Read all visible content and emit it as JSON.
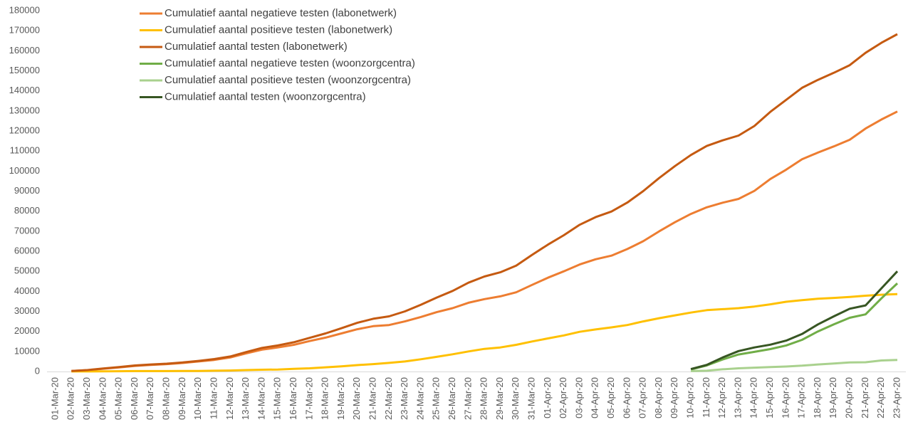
{
  "chart_data": {
    "type": "line",
    "categories": [
      "01-Mar-20",
      "02-Mar-20",
      "03-Mar-20",
      "04-Mar-20",
      "05-Mar-20",
      "06-Mar-20",
      "07-Mar-20",
      "08-Mar-20",
      "09-Mar-20",
      "10-Mar-20",
      "11-Mar-20",
      "12-Mar-20",
      "13-Mar-20",
      "14-Mar-20",
      "15-Mar-20",
      "16-Mar-20",
      "17-Mar-20",
      "18-Mar-20",
      "19-Mar-20",
      "20-Mar-20",
      "21-Mar-20",
      "22-Mar-20",
      "23-Mar-20",
      "24-Mar-20",
      "25-Mar-20",
      "26-Mar-20",
      "27-Mar-20",
      "28-Mar-20",
      "29-Mar-20",
      "30-Mar-20",
      "31-Mar-20",
      "01-Apr-20",
      "02-Apr-20",
      "03-Apr-20",
      "04-Apr-20",
      "05-Apr-20",
      "06-Apr-20",
      "07-Apr-20",
      "08-Apr-20",
      "09-Apr-20",
      "10-Apr-20",
      "11-Apr-20",
      "12-Apr-20",
      "13-Apr-20",
      "14-Apr-20",
      "15-Apr-20",
      "16-Apr-20",
      "17-Apr-20",
      "18-Apr-20",
      "19-Apr-20",
      "20-Apr-20",
      "21-Apr-20",
      "22-Apr-20",
      "23-Apr-20"
    ],
    "series": [
      {
        "name": "Cumulatief aantal negatieve  testen (labonetwerk)",
        "color": "#ed7d31",
        "values": [
          null,
          280,
          660,
          1400,
          2050,
          2800,
          3300,
          3700,
          4250,
          5000,
          5800,
          7000,
          9000,
          10900,
          12000,
          13300,
          15200,
          16900,
          19000,
          21100,
          22600,
          23200,
          25000,
          27200,
          29600,
          31600,
          34300,
          36100,
          37500,
          39500,
          43200,
          46800,
          50000,
          53400,
          56000,
          57800,
          61100,
          65000,
          69900,
          74500,
          78600,
          81900,
          84200,
          86100,
          90100,
          96000,
          100700,
          105900,
          109200,
          112300,
          115600,
          121200,
          125700,
          129700
        ]
      },
      {
        "name": "Cumulatief aantal positieve  testen (labonetwerk)",
        "color": "#ffc000",
        "values": [
          null,
          20,
          40,
          100,
          150,
          200,
          200,
          200,
          250,
          300,
          400,
          500,
          700,
          900,
          1000,
          1300,
          1600,
          2100,
          2600,
          3200,
          3700,
          4300,
          5000,
          6100,
          7300,
          8600,
          10000,
          11300,
          12000,
          13300,
          15000,
          16500,
          18000,
          19800,
          21000,
          22000,
          23200,
          25000,
          26600,
          28000,
          29400,
          30600,
          31100,
          31600,
          32400,
          33500,
          34800,
          35600,
          36300,
          36700,
          37200,
          37800,
          38300,
          38600
        ]
      },
      {
        "name": "Cumulatief aantal testen (labonetwerk)",
        "color": "#c55a11",
        "values": [
          null,
          300,
          700,
          1500,
          2200,
          3000,
          3500,
          3900,
          4500,
          5300,
          6200,
          7500,
          9700,
          11800,
          13000,
          14600,
          16800,
          19000,
          21600,
          24300,
          26300,
          27500,
          30000,
          33300,
          36900,
          40200,
          44300,
          47400,
          49500,
          52800,
          58200,
          63300,
          68000,
          73200,
          77000,
          79800,
          84300,
          90000,
          96500,
          102500,
          108000,
          112500,
          115300,
          117700,
          122500,
          129500,
          135500,
          141500,
          145500,
          149000,
          152800,
          159000,
          164000,
          168300
        ]
      },
      {
        "name": "Cumulatief aantal negatieve  testen (woonzorgcentra)",
        "color": "#70ad47",
        "values": [
          null,
          null,
          null,
          null,
          null,
          null,
          null,
          null,
          null,
          null,
          null,
          null,
          null,
          null,
          null,
          null,
          null,
          null,
          null,
          null,
          null,
          null,
          null,
          null,
          null,
          null,
          null,
          null,
          null,
          null,
          null,
          null,
          null,
          null,
          null,
          null,
          null,
          null,
          null,
          null,
          1000,
          3000,
          6000,
          8500,
          9800,
          11200,
          13000,
          15800,
          20000,
          23500,
          26800,
          28500,
          36500,
          44000
        ]
      },
      {
        "name": "Cumulatief aantal positieve  testen (woonzorgcentra)",
        "color": "#a9d18e",
        "values": [
          null,
          null,
          null,
          null,
          null,
          null,
          null,
          null,
          null,
          null,
          null,
          null,
          null,
          null,
          null,
          null,
          null,
          null,
          null,
          null,
          null,
          null,
          null,
          null,
          null,
          null,
          null,
          null,
          null,
          null,
          null,
          null,
          null,
          null,
          null,
          null,
          null,
          null,
          null,
          null,
          200,
          400,
          1100,
          1600,
          1900,
          2200,
          2500,
          2900,
          3500,
          4000,
          4500,
          4600,
          5500,
          5800
        ]
      },
      {
        "name": "Cumulatief aantal testen (woonzorgcentra)",
        "color": "#375623",
        "values": [
          null,
          null,
          null,
          null,
          null,
          null,
          null,
          null,
          null,
          null,
          null,
          null,
          null,
          null,
          null,
          null,
          null,
          null,
          null,
          null,
          null,
          null,
          null,
          null,
          null,
          null,
          null,
          null,
          null,
          null,
          null,
          null,
          null,
          null,
          null,
          null,
          null,
          null,
          null,
          null,
          1200,
          3300,
          7000,
          10200,
          12000,
          13400,
          15400,
          18700,
          23500,
          27500,
          31300,
          33000,
          41500,
          50000
        ]
      }
    ],
    "ylim": [
      0,
      180000
    ],
    "yticks": [
      0,
      10000,
      20000,
      30000,
      40000,
      50000,
      60000,
      70000,
      80000,
      90000,
      100000,
      110000,
      120000,
      130000,
      140000,
      150000,
      160000,
      170000,
      180000
    ],
    "grid": false
  }
}
